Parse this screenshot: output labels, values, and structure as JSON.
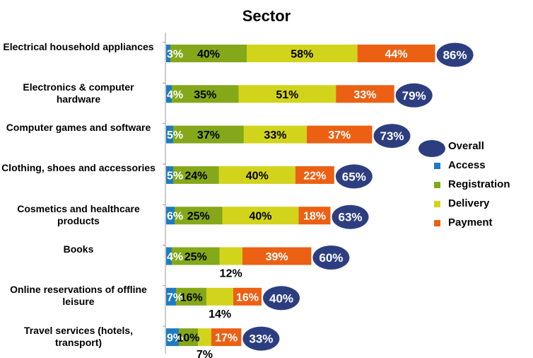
{
  "chart_data": {
    "type": "bar",
    "title": "Sector",
    "categories": [
      "Electrical household appliances",
      "Electronics & computer hardware",
      "Computer games and software",
      "Clothing, shoes and accessories",
      "Cosmetics and healthcare products",
      "Books",
      "Online reservations of offline leisure",
      "Travel services (hotels, transport)"
    ],
    "series": [
      {
        "name": "Access",
        "color": "#1f7bc0",
        "values": [
          3,
          4,
          5,
          5,
          6,
          4,
          7,
          9
        ]
      },
      {
        "name": "Registration",
        "color": "#84a819",
        "values": [
          40,
          35,
          37,
          24,
          25,
          25,
          16,
          10
        ]
      },
      {
        "name": "Delivery",
        "color": "#d2d41c",
        "values": [
          58,
          51,
          33,
          40,
          40,
          12,
          14,
          7
        ]
      },
      {
        "name": "Payment",
        "color": "#ec6013",
        "values": [
          44,
          33,
          37,
          22,
          18,
          39,
          16,
          17
        ]
      },
      {
        "name": "Overall",
        "color": "#2d3e80",
        "values": [
          86,
          79,
          73,
          65,
          63,
          60,
          40,
          33
        ]
      }
    ],
    "legend_position": "right",
    "grid": false
  }
}
